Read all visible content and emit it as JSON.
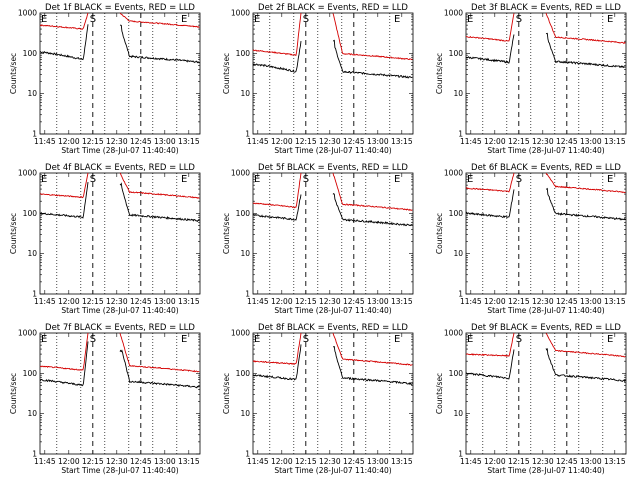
{
  "chart_data": [
    {
      "type": "line",
      "title": "Det 1f BLACK = Events, RED = LLD",
      "xlabel": "Start Time (28-Jul-07 11:40:40)",
      "ylabel": "Counts/sec",
      "ylog": true,
      "ylim": [
        1,
        1000
      ],
      "xticks": [
        "11:45",
        "12:00",
        "12:15",
        "12:30",
        "12:45",
        "13:00",
        "13:15"
      ],
      "yticks": [
        "1",
        "10",
        "100",
        "1000"
      ],
      "markers": [
        {
          "label": "E",
          "t": 0
        },
        {
          "label": "S",
          "t": 33
        },
        {
          "label": "E",
          "t": 90
        }
      ],
      "series": [
        {
          "color": "#000000",
          "level": [
            110,
            70,
            60
          ],
          "peak": 500
        },
        {
          "color": "#d40000",
          "level": [
            500,
            400,
            450
          ],
          "peak": 1000
        }
      ]
    },
    {
      "type": "line",
      "title": "Det 2f BLACK = Events, RED = LLD",
      "xlabel": "Start Time (28-Jul-07 11:40:40)",
      "ylabel": "Counts/sec",
      "ylog": true,
      "ylim": [
        1,
        1000
      ],
      "xticks": [
        "11:45",
        "12:00",
        "12:15",
        "12:30",
        "12:45",
        "13:00",
        "13:15"
      ],
      "yticks": [
        "1",
        "10",
        "100",
        "1000"
      ],
      "markers": [
        {
          "label": "E",
          "t": 0
        },
        {
          "label": "S",
          "t": 33
        },
        {
          "label": "E",
          "t": 90
        }
      ],
      "series": [
        {
          "color": "#000000",
          "level": [
            55,
            35,
            25
          ],
          "peak": 200
        },
        {
          "color": "#d40000",
          "level": [
            120,
            90,
            70
          ],
          "peak": 1000
        }
      ]
    },
    {
      "type": "line",
      "title": "Det 3f BLACK = Events, RED = LLD",
      "xlabel": "Start Time (28-Jul-07 11:40:40)",
      "ylabel": "Counts/sec",
      "ylog": true,
      "ylim": [
        1,
        1000
      ],
      "xticks": [
        "11:45",
        "12:00",
        "12:15",
        "12:30",
        "12:45",
        "13:00",
        "13:15"
      ],
      "yticks": [
        "1",
        "10",
        "100",
        "1000"
      ],
      "markers": [
        {
          "label": "E",
          "t": 0
        },
        {
          "label": "S",
          "t": 33
        },
        {
          "label": "E",
          "t": 90
        }
      ],
      "series": [
        {
          "color": "#000000",
          "level": [
            80,
            60,
            45
          ],
          "peak": 300
        },
        {
          "color": "#d40000",
          "level": [
            260,
            200,
            180
          ],
          "peak": 1000
        }
      ]
    },
    {
      "type": "line",
      "title": "Det 4f BLACK = Events, RED = LLD",
      "xlabel": "Start Time (28-Jul-07 11:40:40)",
      "ylabel": "Counts/sec",
      "ylog": true,
      "ylim": [
        1,
        1000
      ],
      "xticks": [
        "11:45",
        "12:00",
        "12:15",
        "12:30",
        "12:45",
        "13:00",
        "13:15"
      ],
      "yticks": [
        "1",
        "10",
        "100",
        "1000"
      ],
      "markers": [
        {
          "label": "E",
          "t": 0
        },
        {
          "label": "S",
          "t": 33
        },
        {
          "label": "E",
          "t": 90
        }
      ],
      "series": [
        {
          "color": "#000000",
          "level": [
            100,
            80,
            65
          ],
          "peak": 600
        },
        {
          "color": "#d40000",
          "level": [
            300,
            250,
            240
          ],
          "peak": 1000
        }
      ]
    },
    {
      "type": "line",
      "title": "Det 5f BLACK = Events, RED = LLD",
      "xlabel": "Start Time (28-Jul-07 11:40:40)",
      "ylabel": "Counts/sec",
      "ylog": true,
      "ylim": [
        1,
        1000
      ],
      "xticks": [
        "11:45",
        "12:00",
        "12:15",
        "12:30",
        "12:45",
        "13:00",
        "13:15"
      ],
      "yticks": [
        "1",
        "10",
        "100",
        "1000"
      ],
      "markers": [
        {
          "label": "E",
          "t": 0
        },
        {
          "label": "S",
          "t": 33
        },
        {
          "label": "E",
          "t": 90
        }
      ],
      "series": [
        {
          "color": "#000000",
          "level": [
            90,
            70,
            50
          ],
          "peak": 300
        },
        {
          "color": "#d40000",
          "level": [
            180,
            140,
            120
          ],
          "peak": 1000
        }
      ]
    },
    {
      "type": "line",
      "title": "Det 6f BLACK = Events, RED = LLD",
      "xlabel": "Start Time (28-Jul-07 11:40:40)",
      "ylabel": "Counts/sec",
      "ylog": true,
      "ylim": [
        1,
        1000
      ],
      "xticks": [
        "11:45",
        "12:00",
        "12:15",
        "12:30",
        "12:45",
        "13:00",
        "13:15"
      ],
      "yticks": [
        "1",
        "10",
        "100",
        "1000"
      ],
      "markers": [
        {
          "label": "E",
          "t": 0
        },
        {
          "label": "S",
          "t": 33
        },
        {
          "label": "E",
          "t": 90
        }
      ],
      "series": [
        {
          "color": "#000000",
          "level": [
            100,
            80,
            70
          ],
          "peak": 400
        },
        {
          "color": "#d40000",
          "level": [
            420,
            350,
            330
          ],
          "peak": 1000
        }
      ]
    },
    {
      "type": "line",
      "title": "Det 7f BLACK = Events, RED = LLD",
      "xlabel": "Start Time (28-Jul-07 11:40:40)",
      "ylabel": "Counts/sec",
      "ylog": true,
      "ylim": [
        1,
        1000
      ],
      "xticks": [
        "11:45",
        "12:00",
        "12:15",
        "12:30",
        "12:45",
        "13:00",
        "13:15"
      ],
      "yticks": [
        "1",
        "10",
        "100",
        "1000"
      ],
      "markers": [
        {
          "label": "E",
          "t": 0
        },
        {
          "label": "S",
          "t": 33
        },
        {
          "label": "E",
          "t": 90
        }
      ],
      "series": [
        {
          "color": "#000000",
          "level": [
            70,
            50,
            45
          ],
          "peak": 600
        },
        {
          "color": "#d40000",
          "level": [
            150,
            120,
            110
          ],
          "peak": 1000
        }
      ]
    },
    {
      "type": "line",
      "title": "Det 8f BLACK = Events, RED = LLD",
      "xlabel": "Start Time (28-Jul-07 11:40:40)",
      "ylabel": "Counts/sec",
      "ylog": true,
      "ylim": [
        1,
        1000
      ],
      "xticks": [
        "11:45",
        "12:00",
        "12:15",
        "12:30",
        "12:45",
        "13:00",
        "13:15"
      ],
      "yticks": [
        "1",
        "10",
        "100",
        "1000"
      ],
      "markers": [
        {
          "label": "E",
          "t": 0
        },
        {
          "label": "S",
          "t": 33
        },
        {
          "label": "E",
          "t": 90
        }
      ],
      "series": [
        {
          "color": "#000000",
          "level": [
            90,
            70,
            55
          ],
          "peak": 500
        },
        {
          "color": "#d40000",
          "level": [
            200,
            170,
            160
          ],
          "peak": 1000
        }
      ]
    },
    {
      "type": "line",
      "title": "Det 9f BLACK = Events, RED = LLD",
      "xlabel": "Start Time (28-Jul-07 11:40:40)",
      "ylabel": "Counts/sec",
      "ylog": true,
      "ylim": [
        1,
        1000
      ],
      "xticks": [
        "11:45",
        "12:00",
        "12:15",
        "12:30",
        "12:45",
        "13:00",
        "13:15"
      ],
      "yticks": [
        "1",
        "10",
        "100",
        "1000"
      ],
      "markers": [
        {
          "label": "E",
          "t": 0
        },
        {
          "label": "S",
          "t": 33
        },
        {
          "label": "E",
          "t": 90
        }
      ],
      "series": [
        {
          "color": "#000000",
          "level": [
            100,
            75,
            65
          ],
          "peak": 400
        },
        {
          "color": "#d40000",
          "level": [
            300,
            270,
            260
          ],
          "peak": 1000
        }
      ]
    }
  ]
}
